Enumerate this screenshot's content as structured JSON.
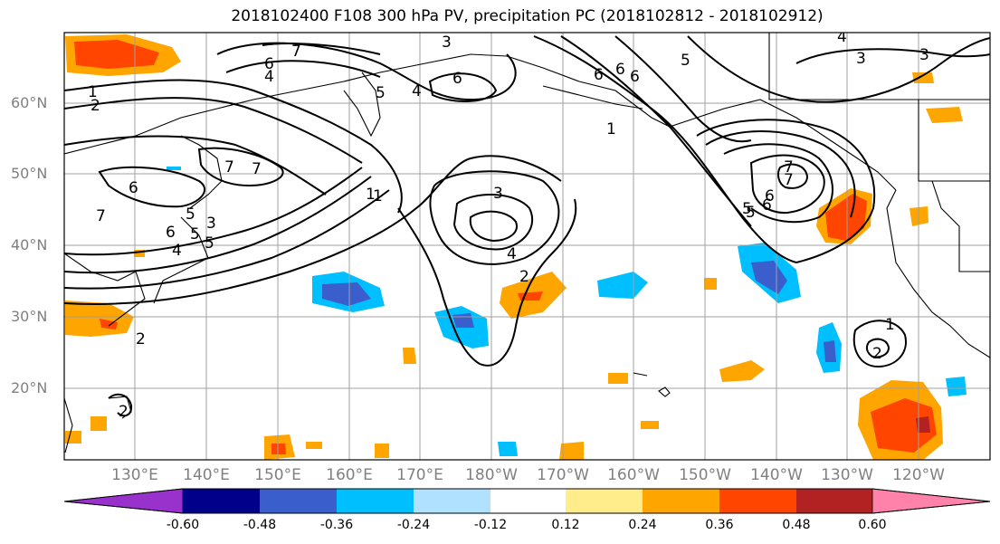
{
  "title": "2018102400 F108 300 hPa PV, precipitation PC (2018102812 - 2018102912)",
  "lat_labels": [
    "60°N",
    "50°N",
    "40°N",
    "30°N",
    "20°N"
  ],
  "lon_labels": [
    "130°E",
    "140°E",
    "150°E",
    "160°E",
    "170°E",
    "180°W",
    "170°W",
    "160°W",
    "150°W",
    "140°W",
    "130°W",
    "120°W"
  ],
  "colorbar": {
    "ticks": [
      "-0.60",
      "-0.48",
      "-0.36",
      "-0.24",
      "-0.12",
      "0.12",
      "0.24",
      "0.36",
      "0.48",
      "0.60"
    ],
    "colors": [
      "#9932cc",
      "#00008b",
      "#3a5fcd",
      "#00bfff",
      "#b0e2ff",
      "#ffffff",
      "#ffec8b",
      "#ffa500",
      "#ff4500",
      "#b22222",
      "#ff82ab"
    ]
  },
  "contour_labels": [
    "1",
    "2",
    "3",
    "4",
    "5",
    "6",
    "7",
    "6",
    "4",
    "1",
    "2",
    "6",
    "7",
    "7",
    "3",
    "6",
    "5",
    "5",
    "3",
    "6",
    "5",
    "7",
    "6",
    "5",
    "4",
    "3",
    "1",
    "2",
    "6",
    "4",
    "5",
    "7",
    "6",
    "3",
    "4",
    "2",
    "2",
    "1",
    "7",
    "6",
    "5",
    "3",
    "1",
    "2",
    "1"
  ],
  "colors": {
    "contour": "#000000",
    "coast": "#000000",
    "grid": "#a0a0a0"
  }
}
